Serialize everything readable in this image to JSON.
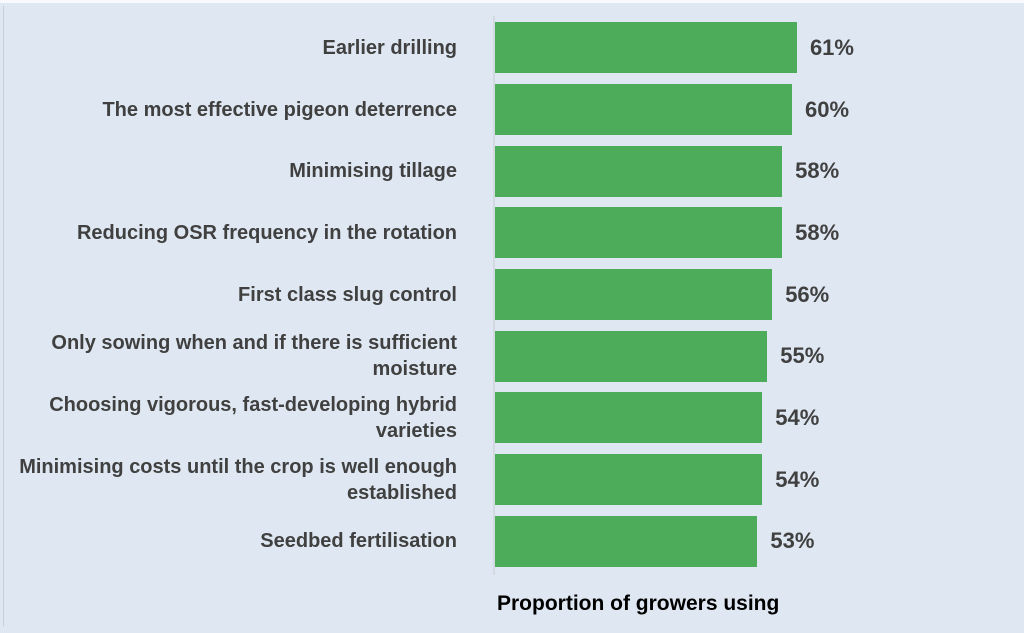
{
  "page": {
    "background_color": "#dfe8f2"
  },
  "chart_data": {
    "type": "bar",
    "orientation": "horizontal",
    "title": "",
    "xlabel": "Proportion of growers using",
    "ylabel": "",
    "categories": [
      "Earlier drilling",
      "The most effective pigeon deterrence",
      "Minimising tillage",
      "Reducing OSR frequency in the rotation",
      "First class slug control",
      "Only sowing when and if there is sufficient moisture",
      "Choosing vigorous, fast-developing hybrid varieties",
      "Minimising costs until the crop is well enough established",
      "Seedbed fertilisation"
    ],
    "values": [
      61,
      60,
      58,
      58,
      56,
      55,
      54,
      54,
      53
    ],
    "labels": [
      "61%",
      "60%",
      "58%",
      "58%",
      "56%",
      "55%",
      "54%",
      "54%",
      "53%"
    ],
    "unit": "%",
    "xlim": [
      0,
      100
    ],
    "grid": false,
    "legend": false,
    "bar_color": "#4dac5a",
    "category_label_color": "#404040",
    "value_label_color": "#404040",
    "axis_title_color": "#000000",
    "axis_line_color": "#d3d9e0"
  }
}
